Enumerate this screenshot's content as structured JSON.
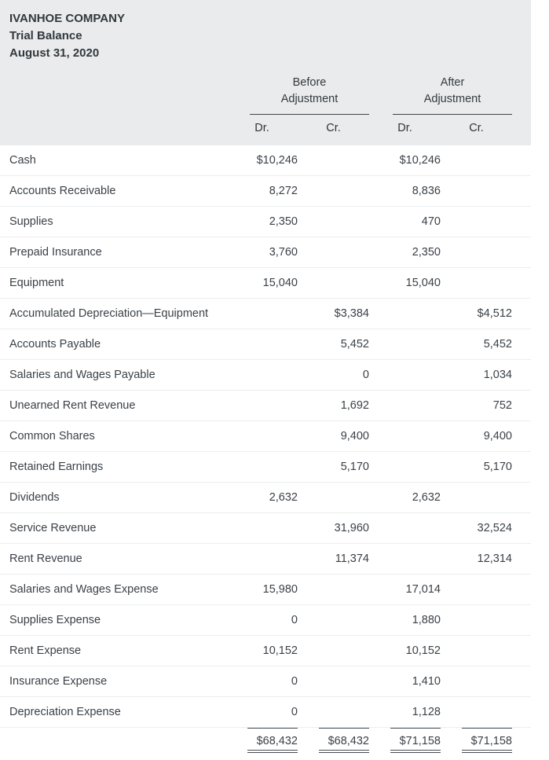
{
  "header": {
    "company": "IVANHOE COMPANY",
    "report_title": "Trial Balance",
    "report_date": "August 31, 2020"
  },
  "columns": {
    "before_group": "Before Adjustment",
    "after_group": "After Adjustment",
    "dr": "Dr.",
    "cr": "Cr."
  },
  "rows": [
    {
      "account": "Cash",
      "before_dr": "$10,246",
      "before_cr": "",
      "after_dr": "$10,246",
      "after_cr": ""
    },
    {
      "account": "Accounts Receivable",
      "before_dr": "8,272",
      "before_cr": "",
      "after_dr": "8,836",
      "after_cr": ""
    },
    {
      "account": "Supplies",
      "before_dr": "2,350",
      "before_cr": "",
      "after_dr": "470",
      "after_cr": ""
    },
    {
      "account": "Prepaid Insurance",
      "before_dr": "3,760",
      "before_cr": "",
      "after_dr": "2,350",
      "after_cr": ""
    },
    {
      "account": "Equipment",
      "before_dr": "15,040",
      "before_cr": "",
      "after_dr": "15,040",
      "after_cr": ""
    },
    {
      "account": "Accumulated Depreciation—Equipment",
      "before_dr": "",
      "before_cr": "$3,384",
      "after_dr": "",
      "after_cr": "$4,512"
    },
    {
      "account": "Accounts Payable",
      "before_dr": "",
      "before_cr": "5,452",
      "after_dr": "",
      "after_cr": "5,452"
    },
    {
      "account": "Salaries and Wages Payable",
      "before_dr": "",
      "before_cr": "0",
      "after_dr": "",
      "after_cr": "1,034"
    },
    {
      "account": "Unearned Rent Revenue",
      "before_dr": "",
      "before_cr": "1,692",
      "after_dr": "",
      "after_cr": "752"
    },
    {
      "account": "Common Shares",
      "before_dr": "",
      "before_cr": "9,400",
      "after_dr": "",
      "after_cr": "9,400"
    },
    {
      "account": "Retained Earnings",
      "before_dr": "",
      "before_cr": "5,170",
      "after_dr": "",
      "after_cr": "5,170"
    },
    {
      "account": "Dividends",
      "before_dr": "2,632",
      "before_cr": "",
      "after_dr": "2,632",
      "after_cr": ""
    },
    {
      "account": "Service Revenue",
      "before_dr": "",
      "before_cr": "31,960",
      "after_dr": "",
      "after_cr": "32,524"
    },
    {
      "account": "Rent Revenue",
      "before_dr": "",
      "before_cr": "11,374",
      "after_dr": "",
      "after_cr": "12,314"
    },
    {
      "account": "Salaries and Wages Expense",
      "before_dr": "15,980",
      "before_cr": "",
      "after_dr": "17,014",
      "after_cr": ""
    },
    {
      "account": "Supplies Expense",
      "before_dr": "0",
      "before_cr": "",
      "after_dr": "1,880",
      "after_cr": ""
    },
    {
      "account": "Rent Expense",
      "before_dr": "10,152",
      "before_cr": "",
      "after_dr": "10,152",
      "after_cr": ""
    },
    {
      "account": "Insurance Expense",
      "before_dr": "0",
      "before_cr": "",
      "after_dr": "1,410",
      "after_cr": ""
    },
    {
      "account": "Depreciation Expense",
      "before_dr": "0",
      "before_cr": "",
      "after_dr": "1,128",
      "after_cr": ""
    }
  ],
  "totals": {
    "before_dr": "$68,432",
    "before_cr": "$68,432",
    "after_dr": "$71,158",
    "after_cr": "$71,158"
  }
}
